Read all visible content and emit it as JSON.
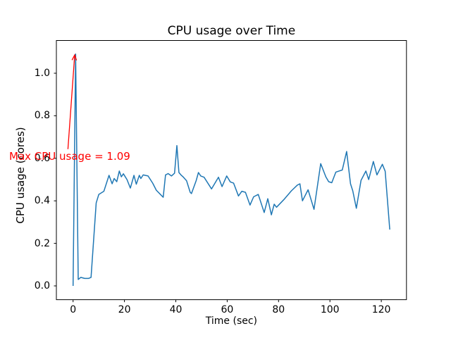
{
  "chart_data": {
    "type": "line",
    "title": "CPU usage over Time",
    "xlabel": "Time (sec)",
    "ylabel": "CPU usage (cores)",
    "x_ticks": [
      0,
      20,
      40,
      60,
      80,
      100,
      120
    ],
    "y_ticks": [
      "0.0",
      "0.2",
      "0.4",
      "0.6",
      "0.8",
      "1.0"
    ],
    "y_tick_values": [
      0.0,
      0.2,
      0.4,
      0.6,
      0.8,
      1.0
    ],
    "xlim": [
      -6.5,
      129.8
    ],
    "ylim": [
      -0.065,
      1.154
    ],
    "grid": false,
    "legend": "none",
    "line_color": "#1f77b4",
    "axis_color": "#000000",
    "series": [
      {
        "name": "cpu-usage",
        "points": [
          [
            0,
            0
          ],
          [
            1,
            1.09
          ],
          [
            2,
            0.03
          ],
          [
            3,
            0.04
          ],
          [
            4.5,
            0.035
          ],
          [
            6,
            0.035
          ],
          [
            7,
            0.04
          ],
          [
            9,
            0.39
          ],
          [
            10,
            0.43
          ],
          [
            12,
            0.445
          ],
          [
            14,
            0.52
          ],
          [
            15.2,
            0.48
          ],
          [
            16,
            0.505
          ],
          [
            17,
            0.49
          ],
          [
            18,
            0.54
          ],
          [
            18.8,
            0.513
          ],
          [
            19.6,
            0.527
          ],
          [
            21,
            0.5
          ],
          [
            22.3,
            0.46
          ],
          [
            23.7,
            0.52
          ],
          [
            24.6,
            0.478
          ],
          [
            25.8,
            0.52
          ],
          [
            26.4,
            0.505
          ],
          [
            27.3,
            0.522
          ],
          [
            29.2,
            0.517
          ],
          [
            31,
            0.483
          ],
          [
            32.4,
            0.45
          ],
          [
            34.6,
            0.423
          ],
          [
            35.1,
            0.417
          ],
          [
            36,
            0.522
          ],
          [
            37,
            0.528
          ],
          [
            38.3,
            0.517
          ],
          [
            39.5,
            0.53
          ],
          [
            40.4,
            0.66
          ],
          [
            41.2,
            0.533
          ],
          [
            42,
            0.522
          ],
          [
            43,
            0.511
          ],
          [
            44.2,
            0.494
          ],
          [
            45.6,
            0.44
          ],
          [
            46.1,
            0.434
          ],
          [
            47.9,
            0.494
          ],
          [
            48.8,
            0.533
          ],
          [
            49.7,
            0.517
          ],
          [
            51,
            0.511
          ],
          [
            53.9,
            0.456
          ],
          [
            56.6,
            0.511
          ],
          [
            58,
            0.467
          ],
          [
            59.8,
            0.517
          ],
          [
            61.2,
            0.489
          ],
          [
            62.5,
            0.483
          ],
          [
            64.4,
            0.423
          ],
          [
            65.7,
            0.445
          ],
          [
            67.1,
            0.44
          ],
          [
            68.9,
            0.38
          ],
          [
            70.3,
            0.419
          ],
          [
            72.1,
            0.43
          ],
          [
            74.4,
            0.345
          ],
          [
            75.8,
            0.41
          ],
          [
            77.2,
            0.334
          ],
          [
            78.3,
            0.384
          ],
          [
            79.2,
            0.37
          ],
          [
            82,
            0.405
          ],
          [
            85,
            0.447
          ],
          [
            87.3,
            0.474
          ],
          [
            88.3,
            0.48
          ],
          [
            89.3,
            0.4
          ],
          [
            91.5,
            0.452
          ],
          [
            93.8,
            0.36
          ],
          [
            96.4,
            0.575
          ],
          [
            98.4,
            0.513
          ],
          [
            99.5,
            0.49
          ],
          [
            100.7,
            0.485
          ],
          [
            102.3,
            0.535
          ],
          [
            103.5,
            0.54
          ],
          [
            104.8,
            0.545
          ],
          [
            106.5,
            0.632
          ],
          [
            108,
            0.48
          ],
          [
            108.9,
            0.447
          ],
          [
            110.3,
            0.365
          ],
          [
            112.1,
            0.496
          ],
          [
            114,
            0.54
          ],
          [
            115.1,
            0.5
          ],
          [
            116.9,
            0.585
          ],
          [
            118.3,
            0.522
          ],
          [
            120.4,
            0.572
          ],
          [
            121.5,
            0.539
          ],
          [
            123.3,
            0.265
          ]
        ]
      }
    ],
    "annotation": {
      "text": "Max CPU usage = 1.09",
      "color": "#ff0000",
      "max_value": 1.09,
      "arrow_from": [
        -2.0,
        0.643
      ],
      "arrow_to": [
        0.62,
        1.086
      ]
    }
  }
}
